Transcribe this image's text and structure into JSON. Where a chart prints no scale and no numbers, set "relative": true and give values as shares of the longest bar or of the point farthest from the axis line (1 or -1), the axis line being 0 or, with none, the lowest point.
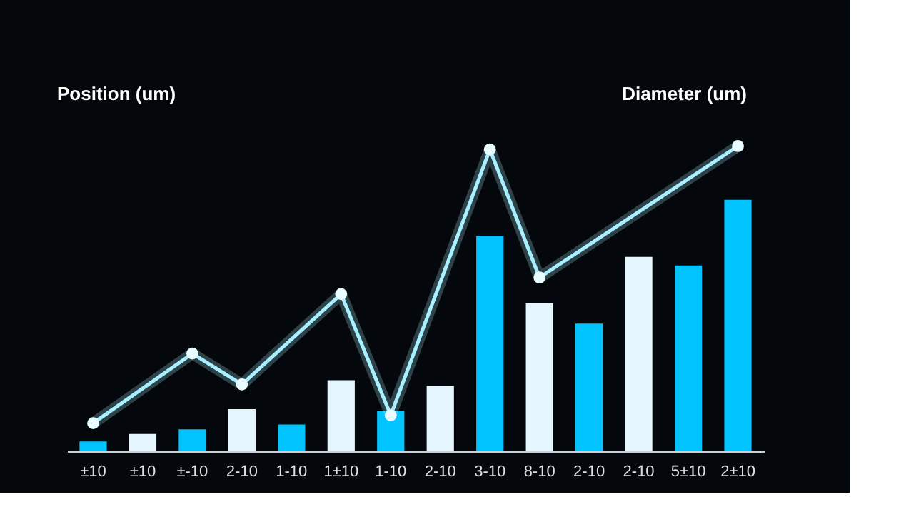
{
  "chart_data": {
    "type": "bar",
    "relative": true,
    "ylabel": "Position (um)",
    "y2label": "Diameter (um)",
    "categories": [
      "±10",
      "±10",
      "±-10",
      "2-10",
      "1-10",
      "1±10",
      "1-10",
      "2-10",
      "3-10",
      "8-10",
      "2-10",
      "2-10",
      "5±10",
      "2±10"
    ],
    "series": [
      {
        "colors": [
          "#00c3ff",
          "#e6f6ff",
          "#00c3ff",
          "#e6f6ff",
          "#00c3ff",
          "#e6f6ff",
          "#00c3ff",
          "#e6f6ff",
          "#00c3ff",
          "#e6f6ff",
          "#00c3ff",
          "#e6f6ff",
          "#00c3ff",
          "#00c3ff"
        ],
        "values": [
          0.032,
          0.057,
          0.072,
          0.138,
          0.088,
          0.233,
          0.133,
          0.214,
          0.706,
          0.485,
          0.418,
          0.637,
          0.609,
          0.824
        ]
      },
      {
        "type": "line",
        "color": "#a8f0ff",
        "marker": "circle",
        "values": [
          0.092,
          null,
          0.32,
          0.219,
          null,
          0.515,
          0.118,
          null,
          0.989,
          0.569,
          null,
          null,
          null,
          1
        ]
      }
    ]
  }
}
